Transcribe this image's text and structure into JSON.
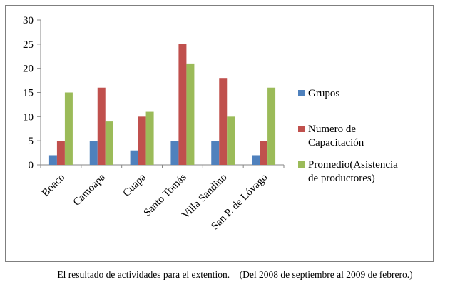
{
  "chart_data": {
    "type": "bar",
    "categories": [
      "Boaco",
      "Camoapa",
      "Cuapa",
      "Santo Tomás",
      "Villa Sandino",
      "San P. de Lóvago"
    ],
    "series": [
      {
        "name": "Grupos",
        "color": "#4f81bd",
        "values": [
          2,
          5,
          3,
          5,
          5,
          2
        ]
      },
      {
        "name": "Numero de Capacitación",
        "legend_lines": [
          "Numero de",
          "Capacitación"
        ],
        "color": "#c0504d",
        "values": [
          5,
          16,
          10,
          25,
          18,
          5
        ]
      },
      {
        "name": "Promedio(Asistencia de productores)",
        "legend_lines": [
          "Promedio(Asistencia",
          "de productores)"
        ],
        "color": "#9bbb59",
        "values": [
          15,
          9,
          11,
          21,
          10,
          16
        ]
      }
    ],
    "yticks": [
      0,
      5,
      10,
      15,
      20,
      25,
      30
    ],
    "ylim": [
      0,
      30
    ],
    "grid": false,
    "legend_position": "right"
  },
  "caption": "El resultado de actividades para el extention.    (Del 2008 de septiembre al 2009 de febrero.)"
}
